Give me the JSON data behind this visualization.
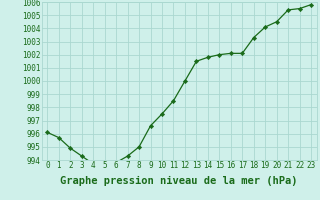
{
  "x": [
    0,
    1,
    2,
    3,
    4,
    5,
    6,
    7,
    8,
    9,
    10,
    11,
    12,
    13,
    14,
    15,
    16,
    17,
    18,
    19,
    20,
    21,
    22,
    23
  ],
  "y": [
    996.1,
    995.7,
    994.9,
    994.3,
    993.7,
    993.8,
    993.8,
    994.3,
    995.0,
    996.6,
    997.5,
    998.5,
    1000.0,
    1001.5,
    1001.8,
    1002.0,
    1002.1,
    1002.1,
    1003.3,
    1004.1,
    1004.5,
    1005.4,
    1005.5,
    1005.8
  ],
  "ylim": [
    994,
    1006
  ],
  "yticks": [
    994,
    995,
    996,
    997,
    998,
    999,
    1000,
    1001,
    1002,
    1003,
    1004,
    1005,
    1006
  ],
  "xticks": [
    0,
    1,
    2,
    3,
    4,
    5,
    6,
    7,
    8,
    9,
    10,
    11,
    12,
    13,
    14,
    15,
    16,
    17,
    18,
    19,
    20,
    21,
    22,
    23
  ],
  "xlabel": "Graphe pression niveau de la mer (hPa)",
  "line_color": "#1a6b1a",
  "marker": "D",
  "marker_size": 2.2,
  "bg_color": "#cff0ea",
  "grid_color": "#aad8d0",
  "tick_fontsize": 5.5,
  "xlabel_fontsize": 7.5
}
